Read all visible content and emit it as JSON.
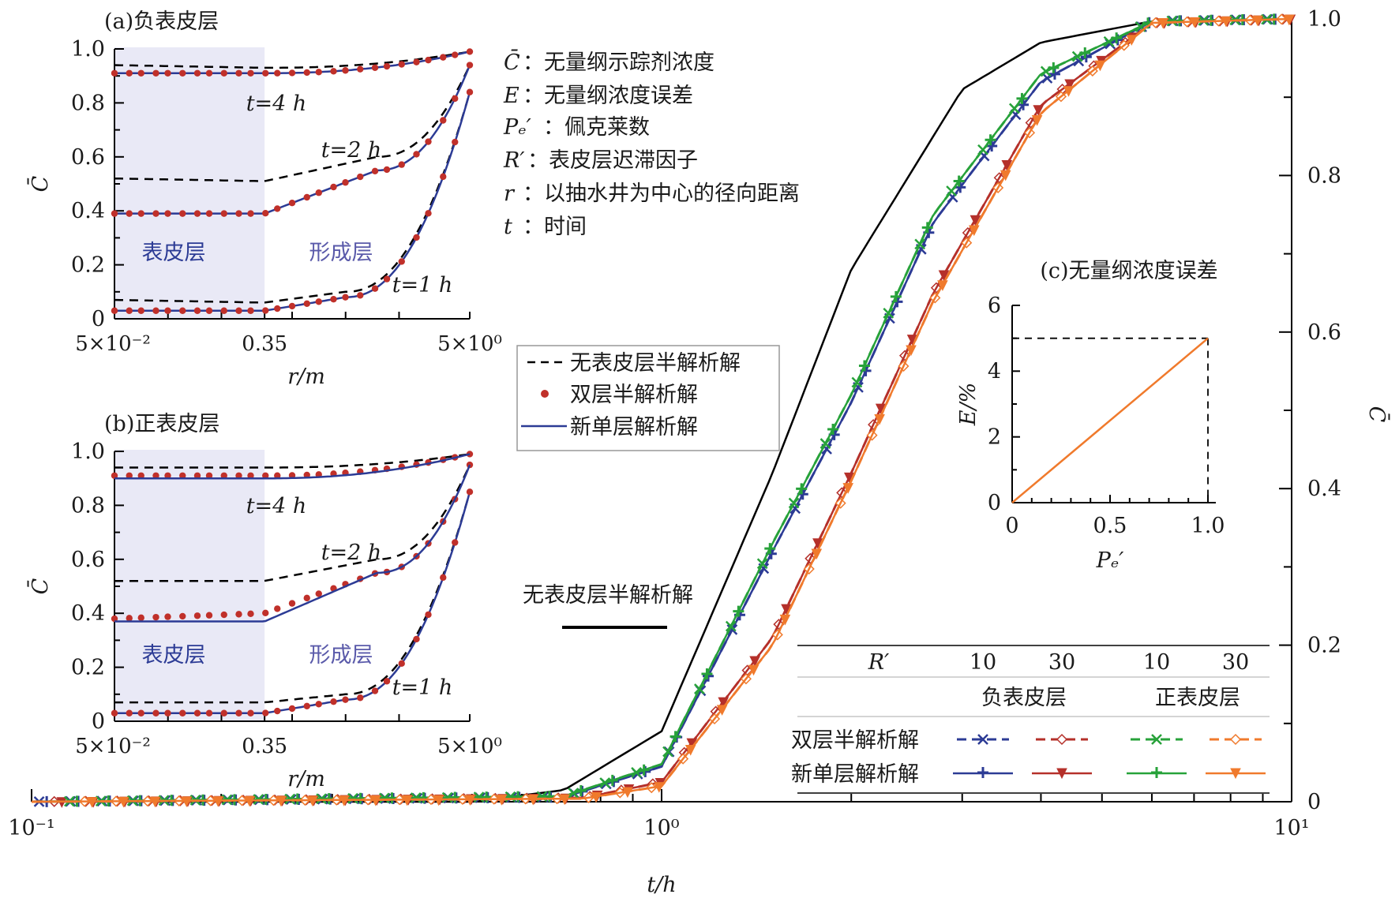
{
  "colors": {
    "black": "#000000",
    "blue": "#2c3b95",
    "darkred": "#b5302a",
    "green": "#27a23a",
    "orange": "#f07a2c",
    "dot": "#c0302a",
    "shade": "#e9e9f6",
    "layer_text": "#5a5aaa"
  },
  "labels": {
    "main_xlabel": "t/h",
    "main_ylabel": "C̄",
    "main_x_ticks": [
      "10⁻¹",
      "10⁰",
      "10¹"
    ],
    "main_y_ticks": [
      "0",
      "0.2",
      "0.4",
      "0.6",
      "0.8",
      "1.0"
    ],
    "center_curve_label": "无表皮层半解析解",
    "panel_a_title": "(a)负表皮层",
    "panel_b_title": "(b)正表皮层",
    "panel_c_title": "(c)无量纲浓度误差",
    "inset_ylabel": "C̄",
    "inset_xlabel": "r/m",
    "inset_x_ticks": [
      "5×10⁻²",
      "0.35",
      "5×10⁰"
    ],
    "inset_y_ticks": [
      "0",
      "0.2",
      "0.4",
      "0.6",
      "0.8",
      "1.0"
    ],
    "skin_label": "表皮层",
    "formation_label": "形成层",
    "time_labels": [
      "t=4 h",
      "t=2 h",
      "t=1 h"
    ],
    "c_ylabel": "E/%",
    "c_xlabel": "Pₑ′",
    "c_x_ticks": [
      "0",
      "0.5",
      "1.0"
    ],
    "c_y_ticks": [
      "0",
      "2",
      "4",
      "6"
    ],
    "definitions": [
      {
        "sym": "C̄",
        "text": "：无量纲示踪剂浓度"
      },
      {
        "sym": "E",
        "text": "：无量纲浓度误差"
      },
      {
        "sym": "Pₑ′",
        "text": "：佩克莱数"
      },
      {
        "sym": "R′",
        "text": "：表皮层迟滞因子"
      },
      {
        "sym": "r",
        "text": "：以抽水井为中心的径向距离"
      },
      {
        "sym": "t",
        "text": "：时间"
      }
    ],
    "legend_items": [
      "无表皮层半解析解",
      "双层半解析解",
      "新单层解析解"
    ],
    "table_header": "R′",
    "table_r_values": [
      "10",
      "30",
      "10",
      "30"
    ],
    "table_groups": [
      "负表皮层",
      "正表皮层"
    ],
    "table_rows": [
      "双层半解析解",
      "新单层解析解"
    ]
  },
  "chart_data": [
    {
      "type": "line",
      "xlabel": "t/h",
      "ylabel": "C̄",
      "xscale": "log",
      "xlim": [
        0.1,
        10
      ],
      "ylim": [
        0,
        1.0
      ],
      "series": [
        {
          "name": "无表皮层半解析解",
          "style": "solid-black",
          "x": [
            0.1,
            0.5,
            0.7,
            1.0,
            1.5,
            2.0,
            3.0,
            4.0,
            6.0,
            10.0
          ],
          "y": [
            0,
            0.0,
            0.015,
            0.09,
            0.42,
            0.68,
            0.91,
            0.97,
            0.997,
            1.0
          ]
        },
        {
          "name": "负表皮层 R′=10 双层半解析解",
          "x": [
            0.1,
            0.7,
            1.0,
            1.5,
            2.0,
            2.7,
            4.0,
            6.0,
            10.0
          ],
          "y": [
            0,
            0.006,
            0.045,
            0.32,
            0.51,
            0.74,
            0.92,
            0.997,
            1.0
          ]
        },
        {
          "name": "负表皮层 R′=10 新单层解析解",
          "x": [
            0.1,
            0.7,
            1.0,
            1.5,
            2.0,
            2.7,
            4.0,
            6.0,
            10.0
          ],
          "y": [
            0,
            0.006,
            0.045,
            0.32,
            0.51,
            0.74,
            0.92,
            0.997,
            1.0
          ]
        },
        {
          "name": "负表皮层 R′=30 双层半解析解",
          "x": [
            0.1,
            0.75,
            1.0,
            1.5,
            2.0,
            2.7,
            4.0,
            6.0,
            10.0
          ],
          "y": [
            0,
            0.005,
            0.025,
            0.21,
            0.42,
            0.65,
            0.89,
            0.995,
            1.0
          ]
        },
        {
          "name": "负表皮层 R′=30 新单层解析解",
          "x": [
            0.1,
            0.75,
            1.0,
            1.5,
            2.0,
            2.7,
            4.0,
            6.0,
            10.0
          ],
          "y": [
            0,
            0.005,
            0.025,
            0.21,
            0.42,
            0.65,
            0.89,
            0.995,
            1.0
          ]
        },
        {
          "name": "正表皮层 R′=10 双层半解析解",
          "x": [
            0.1,
            0.7,
            1.0,
            1.5,
            2.0,
            2.7,
            4.0,
            6.0,
            10.0
          ],
          "y": [
            0,
            0.007,
            0.048,
            0.33,
            0.52,
            0.75,
            0.93,
            0.997,
            1.0
          ]
        },
        {
          "name": "正表皮层 R′=10 新单层解析解",
          "x": [
            0.1,
            0.7,
            1.0,
            1.5,
            2.0,
            2.7,
            4.0,
            6.0,
            10.0
          ],
          "y": [
            0,
            0.007,
            0.048,
            0.33,
            0.52,
            0.75,
            0.93,
            0.997,
            1.0
          ]
        },
        {
          "name": "正表皮层 R′=30 双层半解析解",
          "x": [
            0.1,
            0.75,
            1.0,
            1.5,
            2.0,
            2.7,
            4.0,
            6.0,
            10.0
          ],
          "y": [
            0,
            0.004,
            0.02,
            0.2,
            0.41,
            0.64,
            0.88,
            0.995,
            1.0
          ]
        },
        {
          "name": "正表皮层 R′=30 新单层解析解",
          "x": [
            0.1,
            0.75,
            1.0,
            1.5,
            2.0,
            2.7,
            4.0,
            6.0,
            10.0
          ],
          "y": [
            0,
            0.004,
            0.02,
            0.2,
            0.41,
            0.64,
            0.88,
            0.995,
            1.0
          ]
        }
      ]
    },
    {
      "type": "line",
      "title": "(a)负表皮层",
      "xlabel": "r/m",
      "ylabel": "C̄",
      "xscale": "log",
      "xlim": [
        0.05,
        5
      ],
      "ylim": [
        0,
        1.0
      ],
      "series": [
        {
          "name": "t=4 h 无表皮层半解析解",
          "x": [
            0.05,
            0.35,
            5
          ],
          "y": [
            0.94,
            0.93,
            0.99
          ]
        },
        {
          "name": "t=4 h 双层半解析解/新单层解析解",
          "x": [
            0.05,
            0.35,
            5
          ],
          "y": [
            0.91,
            0.91,
            0.99
          ]
        },
        {
          "name": "t=2 h 无表皮层半解析解",
          "x": [
            0.05,
            0.35,
            1.5,
            5
          ],
          "y": [
            0.52,
            0.51,
            0.6,
            0.94
          ]
        },
        {
          "name": "t=2 h 双层半解析解/新单层解析解",
          "x": [
            0.05,
            0.35,
            1.5,
            5
          ],
          "y": [
            0.39,
            0.39,
            0.55,
            0.94
          ]
        },
        {
          "name": "t=1 h 无表皮层半解析解",
          "x": [
            0.05,
            0.35,
            1.0,
            5
          ],
          "y": [
            0.07,
            0.06,
            0.1,
            0.84
          ]
        },
        {
          "name": "t=1 h 双层半解析解/新单层解析解",
          "x": [
            0.05,
            0.35,
            1.0,
            5
          ],
          "y": [
            0.03,
            0.03,
            0.08,
            0.84
          ]
        }
      ]
    },
    {
      "type": "line",
      "title": "(b)正表皮层",
      "xlabel": "r/m",
      "ylabel": "C̄",
      "xscale": "log",
      "xlim": [
        0.05,
        5
      ],
      "ylim": [
        0,
        1.0
      ],
      "series": [
        {
          "name": "t=4 h 无表皮层半解析解",
          "x": [
            0.05,
            0.35,
            5
          ],
          "y": [
            0.94,
            0.94,
            0.99
          ]
        },
        {
          "name": "t=4 h 双层半解析解",
          "x": [
            0.05,
            0.35,
            5
          ],
          "y": [
            0.91,
            0.91,
            0.99
          ]
        },
        {
          "name": "t=4 h 新单层解析解",
          "x": [
            0.05,
            0.35,
            5
          ],
          "y": [
            0.9,
            0.9,
            0.99
          ]
        },
        {
          "name": "t=2 h 无表皮层半解析解",
          "x": [
            0.05,
            0.35,
            1.5,
            5
          ],
          "y": [
            0.52,
            0.52,
            0.6,
            0.95
          ]
        },
        {
          "name": "t=2 h 双层半解析解",
          "x": [
            0.05,
            0.35,
            1.5,
            5
          ],
          "y": [
            0.38,
            0.4,
            0.55,
            0.95
          ]
        },
        {
          "name": "t=2 h 新单层解析解",
          "x": [
            0.05,
            0.35,
            1.5,
            5
          ],
          "y": [
            0.37,
            0.37,
            0.55,
            0.95
          ]
        },
        {
          "name": "t=1 h 无表皮层半解析解",
          "x": [
            0.05,
            0.35,
            1.0,
            5
          ],
          "y": [
            0.07,
            0.07,
            0.1,
            0.85
          ]
        },
        {
          "name": "t=1 h 双层半解析解/新单层解析解",
          "x": [
            0.05,
            0.35,
            1.0,
            5
          ],
          "y": [
            0.03,
            0.03,
            0.08,
            0.85
          ]
        }
      ]
    },
    {
      "type": "line",
      "title": "(c)无量纲浓度误差",
      "xlabel": "Pₑ′",
      "ylabel": "E/%",
      "xlim": [
        0,
        1.0
      ],
      "ylim": [
        0,
        6
      ],
      "series": [
        {
          "name": "E",
          "x": [
            0,
            1.0
          ],
          "y": [
            0,
            5.0
          ]
        }
      ],
      "reference_line": 5.0
    }
  ]
}
